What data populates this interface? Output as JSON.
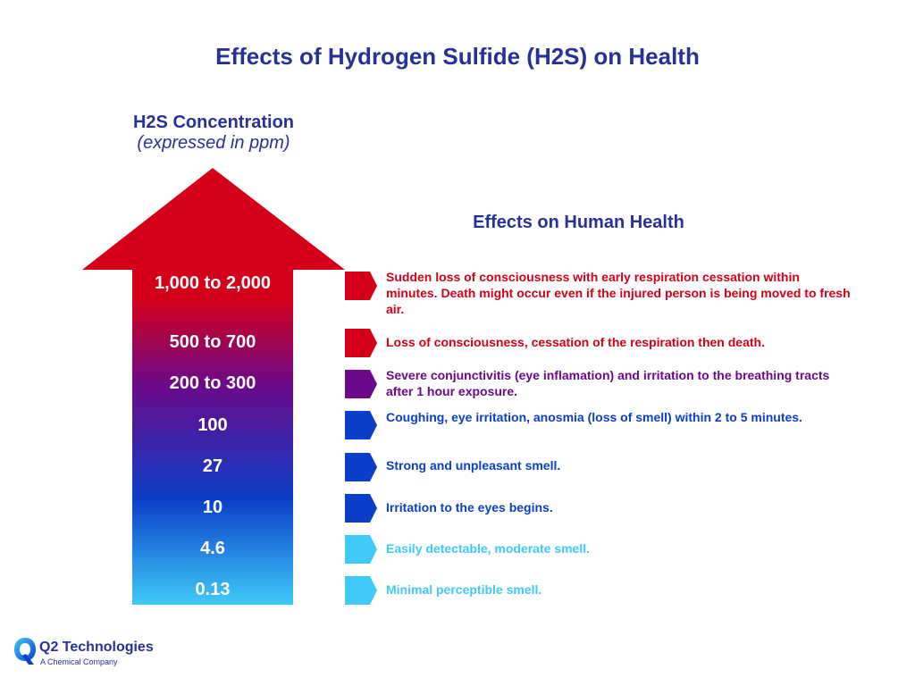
{
  "title": "Effects of Hydrogen Sulfide (H2S) on Health",
  "concentration_heading": {
    "title": "H2S Concentration",
    "subtitle": "(expressed in ppm)"
  },
  "effects_heading": "Effects on Human Health",
  "levels": [
    {
      "ppm": "1,000 to 2,000",
      "effect": "Sudden loss of consciousness with early respiration cessation within minutes. Death might occur even if the injured person is being moved to fresh air.",
      "color": "#d4001a"
    },
    {
      "ppm": "500 to 700",
      "effect": "Loss of consciousness, cessation of the respiration then death.",
      "color": "#d4001a"
    },
    {
      "ppm": "200 to 300",
      "effect": "Severe conjunctivitis (eye inflamation) and irritation to the breathing tracts after 1 hour exposure.",
      "color": "#6a0a8a"
    },
    {
      "ppm": "100",
      "effect": "Coughing, eye irritation, anosmia (loss of smell) within 2 to 5 minutes.",
      "color": "#0b3fc9"
    },
    {
      "ppm": "27",
      "effect": "Strong and unpleasant smell.",
      "color": "#0b3fc9"
    },
    {
      "ppm": "10",
      "effect": "Irritation to the eyes begins.",
      "color": "#0b3fc9"
    },
    {
      "ppm": "4.6",
      "effect": "Easily detectable, moderate smell.",
      "color": "#3fcaf8"
    },
    {
      "ppm": "0.13",
      "effect": "Minimal perceptible smell.",
      "color": "#3fcaf8"
    }
  ],
  "arrow_gradient": [
    "#d4001a",
    "#6a0a8a",
    "#0b3fc9",
    "#3fcaf8"
  ],
  "logo": {
    "name": "Q2 Technologies",
    "tagline": "A Chemical Company",
    "icon": "q2-logo-icon"
  }
}
